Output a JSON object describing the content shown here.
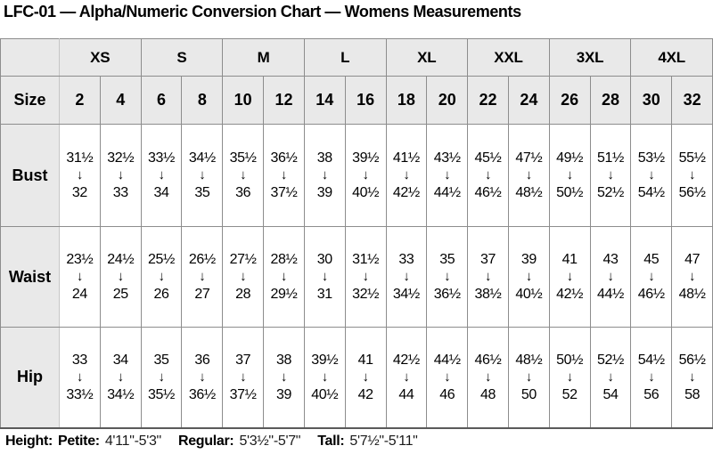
{
  "title": "LFC-01 — Alpha/Numeric Conversion Chart — Womens Measurements",
  "colors": {
    "header_bg": "#e9e9e9",
    "border": "#8d8d8d",
    "bottom_border": "#5a5a5a",
    "text": "#000000",
    "background": "#ffffff"
  },
  "icons": {
    "down_arrow": "↓"
  },
  "chart_data": {
    "type": "table",
    "title": "LFC-01 — Alpha/Numeric Conversion Chart — Womens Measurements",
    "corner_label": "",
    "size_label": "Size",
    "alpha_sizes": [
      "XS",
      "S",
      "M",
      "L",
      "XL",
      "XXL",
      "3XL",
      "4XL"
    ],
    "numeric_sizes": [
      "2",
      "4",
      "6",
      "8",
      "10",
      "12",
      "14",
      "16",
      "18",
      "20",
      "22",
      "24",
      "26",
      "28",
      "30",
      "32"
    ],
    "rows": [
      {
        "label": "Bust",
        "from": [
          "31½",
          "32½",
          "33½",
          "34½",
          "35½",
          "36½",
          "38",
          "39½",
          "41½",
          "43½",
          "45½",
          "47½",
          "49½",
          "51½",
          "53½",
          "55½"
        ],
        "to": [
          "32",
          "33",
          "34",
          "35",
          "36",
          "37½",
          "39",
          "40½",
          "42½",
          "44½",
          "46½",
          "48½",
          "50½",
          "52½",
          "54½",
          "56½"
        ]
      },
      {
        "label": "Waist",
        "from": [
          "23½",
          "24½",
          "25½",
          "26½",
          "27½",
          "28½",
          "30",
          "31½",
          "33",
          "35",
          "37",
          "39",
          "41",
          "43",
          "45",
          "47"
        ],
        "to": [
          "24",
          "25",
          "26",
          "27",
          "28",
          "29½",
          "31",
          "32½",
          "34½",
          "36½",
          "38½",
          "40½",
          "42½",
          "44½",
          "46½",
          "48½"
        ]
      },
      {
        "label": "Hip",
        "from": [
          "33",
          "34",
          "35",
          "36",
          "37",
          "38",
          "39½",
          "41",
          "42½",
          "44½",
          "46½",
          "48½",
          "50½",
          "52½",
          "54½",
          "56½"
        ],
        "to": [
          "33½",
          "34½",
          "35½",
          "36½",
          "37½",
          "39",
          "40½",
          "42",
          "44",
          "46",
          "48",
          "50",
          "52",
          "54",
          "56",
          "58"
        ]
      }
    ]
  },
  "footer": {
    "heading": "Height:",
    "entries": [
      {
        "label": "Petite:",
        "value": "4'11\"-5'3\""
      },
      {
        "label": "Regular:",
        "value": "5'3½\"-5'7\""
      },
      {
        "label": "Tall:",
        "value": "5'7½\"-5'11\""
      }
    ]
  }
}
